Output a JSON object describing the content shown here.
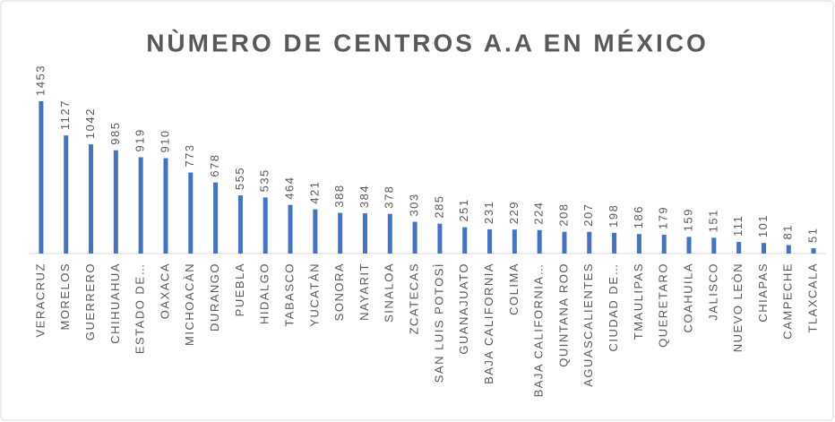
{
  "chart_data": {
    "type": "bar",
    "title": "NÙMERO DE CENTROS  A.A EN MÉXICO",
    "categories": [
      "VERACRUZ",
      "MORELOS",
      "GUERRERO",
      "CHIHUAHUA",
      "ESTADO DE…",
      "OAXACA",
      "MICHOACÀN",
      "DURANGO",
      "PUEBLA",
      "HIDALGO",
      "TABASCO",
      "YUCATÀN",
      "SONORA",
      "NAYARIT",
      "SINALOA",
      "ZCATECAS",
      "SAN LUIS POTOSÌ",
      "GUANAJUATO",
      "BAJA CALIFORNIA",
      "COLIMA",
      "BAJA CALIFORNIA…",
      "QUINTANA ROO",
      "AGUASCALIENTES",
      "CIUDAD DE…",
      "TMAULIPAS",
      "QUERETARO",
      "COAHUILA",
      "JALISCO",
      "NUEVO LEÒN",
      "CHIAPAS",
      "CAMPECHE",
      "TLAXCALA"
    ],
    "values": [
      1453,
      1127,
      1042,
      985,
      919,
      910,
      773,
      678,
      555,
      535,
      464,
      421,
      388,
      384,
      378,
      303,
      285,
      251,
      231,
      229,
      224,
      208,
      207,
      198,
      186,
      179,
      159,
      151,
      111,
      101,
      81,
      51
    ],
    "color": "#4472c4"
  }
}
